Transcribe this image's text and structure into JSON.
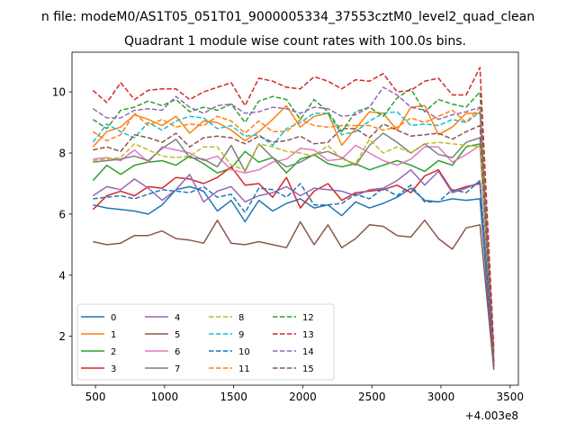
{
  "chart_data": {
    "type": "line",
    "suptitle": "n file: modeM0/AS1T05_051T01_9000005334_37553cztM0_level2_quad_clean",
    "title": "Quadrant 1 module wise count rates with 100.0s bins.",
    "xlabel": "",
    "ylabel": "",
    "x_offset_label": "+4.003e8",
    "xlim": [
      330,
      3560
    ],
    "ylim": [
      0.4,
      11.3
    ],
    "x_ticks": [
      500,
      1000,
      1500,
      2000,
      2500,
      3000,
      3500
    ],
    "y_ticks": [
      2,
      4,
      6,
      8,
      10
    ],
    "grid": false,
    "legend_position": "lower-left",
    "legend_columns": 4,
    "x": [
      482,
      582,
      682,
      782,
      882,
      982,
      1082,
      1182,
      1282,
      1382,
      1482,
      1582,
      1682,
      1782,
      1882,
      1982,
      2082,
      2182,
      2282,
      2382,
      2482,
      2582,
      2682,
      2782,
      2882,
      2982,
      3082,
      3182,
      3282,
      3382
    ],
    "series": [
      {
        "name": "0",
        "color": "#1f77b4",
        "dash": "solid",
        "values": [
          6.3,
          6.2,
          6.15,
          6.1,
          6.0,
          6.3,
          6.8,
          6.9,
          6.75,
          6.1,
          6.45,
          5.75,
          6.45,
          6.1,
          6.35,
          6.5,
          6.2,
          6.3,
          5.95,
          6.4,
          6.2,
          6.35,
          6.55,
          6.85,
          6.45,
          6.4,
          6.5,
          6.45,
          6.5,
          1.0
        ]
      },
      {
        "name": "1",
        "color": "#ff7f0e",
        "dash": "solid",
        "values": [
          8.2,
          8.7,
          8.85,
          9.25,
          9.1,
          8.9,
          9.2,
          8.65,
          9.05,
          9.0,
          8.75,
          8.4,
          8.7,
          9.1,
          9.55,
          8.85,
          9.2,
          9.3,
          8.25,
          8.8,
          9.35,
          9.3,
          8.75,
          9.5,
          9.55,
          8.6,
          8.85,
          9.3,
          9.3,
          1.2
        ]
      },
      {
        "name": "2",
        "color": "#2ca02c",
        "dash": "solid",
        "values": [
          7.1,
          7.6,
          7.3,
          7.6,
          7.7,
          7.75,
          7.6,
          7.9,
          7.65,
          7.35,
          7.5,
          8.05,
          7.7,
          7.85,
          7.35,
          7.8,
          7.95,
          7.65,
          7.55,
          7.65,
          7.45,
          7.6,
          7.75,
          7.6,
          7.4,
          7.75,
          7.6,
          8.2,
          8.3,
          1.1
        ]
      },
      {
        "name": "3",
        "color": "#d62728",
        "dash": "solid",
        "values": [
          6.15,
          6.6,
          6.75,
          6.6,
          6.9,
          6.85,
          7.2,
          7.15,
          7.0,
          7.2,
          7.55,
          6.95,
          7.0,
          6.55,
          7.2,
          6.2,
          6.75,
          7.0,
          6.45,
          6.7,
          6.75,
          6.8,
          6.95,
          6.7,
          7.25,
          7.45,
          6.75,
          6.9,
          7.0,
          1.1
        ]
      },
      {
        "name": "4",
        "color": "#9467bd",
        "dash": "solid",
        "values": [
          6.6,
          6.9,
          6.8,
          7.15,
          6.85,
          6.45,
          6.8,
          7.3,
          6.4,
          6.75,
          6.9,
          6.4,
          6.6,
          6.7,
          6.9,
          6.6,
          6.85,
          6.8,
          6.75,
          6.6,
          6.8,
          6.85,
          7.1,
          7.45,
          6.95,
          7.4,
          6.7,
          6.85,
          7.05,
          1.0
        ]
      },
      {
        "name": "5",
        "color": "#8c564b",
        "dash": "solid",
        "values": [
          5.1,
          5.0,
          5.05,
          5.3,
          5.3,
          5.45,
          5.2,
          5.15,
          5.05,
          5.8,
          5.05,
          5.0,
          5.1,
          5.0,
          4.9,
          5.75,
          5.0,
          5.65,
          4.9,
          5.2,
          5.65,
          5.6,
          5.3,
          5.25,
          5.8,
          5.2,
          4.85,
          5.55,
          5.65,
          0.9
        ]
      },
      {
        "name": "6",
        "color": "#e377c2",
        "dash": "solid",
        "values": [
          7.8,
          7.85,
          7.75,
          8.1,
          7.7,
          8.2,
          8.1,
          8.0,
          7.75,
          7.9,
          7.45,
          7.35,
          7.45,
          7.7,
          7.8,
          8.15,
          8.1,
          7.75,
          7.8,
          8.25,
          8.0,
          7.75,
          7.6,
          7.8,
          8.2,
          8.2,
          7.7,
          7.95,
          8.25,
          1.0
        ]
      },
      {
        "name": "7",
        "color": "#7f7f7f",
        "dash": "solid",
        "values": [
          7.7,
          7.75,
          7.8,
          7.9,
          7.75,
          8.15,
          8.45,
          7.85,
          7.8,
          7.55,
          8.25,
          7.4,
          8.3,
          7.85,
          7.55,
          7.7,
          7.95,
          8.05,
          7.85,
          7.6,
          8.25,
          8.65,
          8.35,
          8.0,
          8.3,
          7.95,
          7.85,
          8.35,
          8.5,
          1.0
        ]
      },
      {
        "name": "8",
        "color": "#bcbd22",
        "dash": "dashed",
        "values": [
          7.75,
          7.8,
          7.85,
          8.3,
          8.1,
          7.9,
          7.85,
          7.9,
          8.2,
          8.2,
          7.6,
          7.45,
          8.3,
          8.2,
          8.05,
          8.0,
          7.9,
          8.25,
          7.8,
          7.65,
          8.45,
          8.0,
          8.2,
          8.0,
          8.3,
          8.35,
          8.3,
          8.25,
          8.2,
          1.1
        ]
      },
      {
        "name": "9",
        "color": "#17becf",
        "dash": "dashed",
        "values": [
          8.35,
          8.95,
          8.7,
          8.5,
          9.0,
          8.75,
          9.05,
          9.2,
          9.15,
          8.8,
          8.9,
          8.55,
          8.6,
          8.25,
          8.8,
          9.0,
          9.3,
          9.3,
          8.6,
          8.7,
          9.05,
          9.3,
          9.35,
          8.9,
          8.95,
          8.9,
          9.1,
          9.0,
          9.35,
          1.3
        ]
      },
      {
        "name": "10",
        "color": "#1f77b4",
        "dash": "dashed",
        "values": [
          6.5,
          6.55,
          6.6,
          6.5,
          6.65,
          6.8,
          6.75,
          6.7,
          6.9,
          6.55,
          6.65,
          6.05,
          6.85,
          6.8,
          6.55,
          7.0,
          6.3,
          6.3,
          6.35,
          6.65,
          6.5,
          6.85,
          6.6,
          6.95,
          6.4,
          6.4,
          6.8,
          6.7,
          7.1,
          1.05
        ]
      },
      {
        "name": "11",
        "color": "#ff7f0e",
        "dash": "dashed",
        "values": [
          8.7,
          8.4,
          8.6,
          9.3,
          8.9,
          9.1,
          8.85,
          8.95,
          8.9,
          9.2,
          9.05,
          8.65,
          9.05,
          8.7,
          8.7,
          9.1,
          8.9,
          8.85,
          8.9,
          8.9,
          8.9,
          8.75,
          8.85,
          9.15,
          9.0,
          9.2,
          9.4,
          9.0,
          9.5,
          1.4
        ]
      },
      {
        "name": "12",
        "color": "#2ca02c",
        "dash": "dashed",
        "values": [
          9.1,
          8.8,
          9.4,
          9.5,
          9.7,
          9.55,
          9.75,
          9.35,
          9.5,
          9.4,
          9.6,
          9.0,
          9.7,
          9.85,
          9.75,
          9.1,
          9.75,
          9.35,
          8.7,
          9.35,
          9.5,
          9.2,
          9.8,
          10.1,
          9.35,
          9.75,
          9.6,
          9.5,
          10.0,
          1.5
        ]
      },
      {
        "name": "13",
        "color": "#d62728",
        "dash": "dashed",
        "values": [
          10.05,
          9.65,
          10.3,
          9.75,
          10.05,
          10.1,
          10.1,
          9.75,
          10.0,
          10.15,
          10.3,
          9.55,
          10.45,
          10.35,
          10.15,
          10.1,
          10.5,
          10.35,
          10.1,
          10.4,
          10.35,
          10.6,
          10.0,
          10.05,
          10.35,
          10.45,
          9.9,
          9.9,
          10.8,
          1.6
        ]
      },
      {
        "name": "14",
        "color": "#9467bd",
        "dash": "dashed",
        "values": [
          9.45,
          9.15,
          9.15,
          9.4,
          9.45,
          9.4,
          9.85,
          9.5,
          9.3,
          9.55,
          9.6,
          9.3,
          9.35,
          9.5,
          9.45,
          9.3,
          9.5,
          9.45,
          9.2,
          9.25,
          9.5,
          10.15,
          9.9,
          9.5,
          9.4,
          9.1,
          9.25,
          9.35,
          9.5,
          1.1
        ]
      },
      {
        "name": "15",
        "color": "#8c564b",
        "dash": "dashed",
        "values": [
          8.1,
          8.2,
          8.05,
          8.6,
          8.5,
          8.35,
          8.65,
          8.2,
          8.5,
          8.55,
          8.5,
          8.3,
          8.55,
          8.35,
          8.4,
          8.55,
          8.3,
          8.35,
          8.8,
          8.8,
          8.5,
          8.95,
          8.75,
          8.55,
          8.6,
          8.65,
          8.45,
          8.7,
          8.9,
          1.0
        ]
      }
    ]
  }
}
